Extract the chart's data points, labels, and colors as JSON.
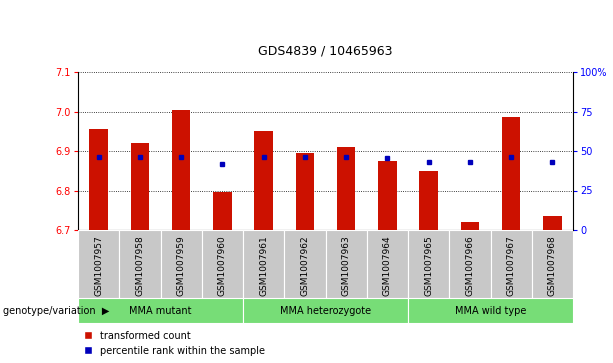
{
  "title": "GDS4839 / 10465963",
  "samples": [
    "GSM1007957",
    "GSM1007958",
    "GSM1007959",
    "GSM1007960",
    "GSM1007961",
    "GSM1007962",
    "GSM1007963",
    "GSM1007964",
    "GSM1007965",
    "GSM1007966",
    "GSM1007967",
    "GSM1007968"
  ],
  "red_values": [
    6.955,
    6.92,
    7.005,
    6.795,
    6.95,
    6.895,
    6.91,
    6.875,
    6.85,
    6.72,
    6.985,
    6.735
  ],
  "blue_values": [
    0.465,
    0.465,
    0.465,
    0.42,
    0.465,
    0.465,
    0.465,
    0.455,
    0.43,
    0.43,
    0.465,
    0.43
  ],
  "y_min": 6.7,
  "y_max": 7.1,
  "y_ticks": [
    6.7,
    6.8,
    6.9,
    7.0,
    7.1
  ],
  "right_y_ticks": [
    0,
    25,
    50,
    75,
    100
  ],
  "right_y_labels": [
    "0",
    "25",
    "50",
    "75",
    "100%"
  ],
  "groups": [
    {
      "label": "MMA mutant",
      "start": 0,
      "end": 4
    },
    {
      "label": "MMA heterozygote",
      "start": 4,
      "end": 8
    },
    {
      "label": "MMA wild type",
      "start": 8,
      "end": 12
    }
  ],
  "bar_color": "#cc1100",
  "dot_color": "#0000bb",
  "bar_width": 0.45,
  "legend_red": "transformed count",
  "legend_blue": "percentile rank within the sample",
  "genotype_label": "genotype/variation",
  "sample_bg": "#c8c8c8",
  "group_color": "#77dd77",
  "title_fontsize": 9,
  "tick_fontsize": 7,
  "label_fontsize": 6.5,
  "group_fontsize": 7
}
